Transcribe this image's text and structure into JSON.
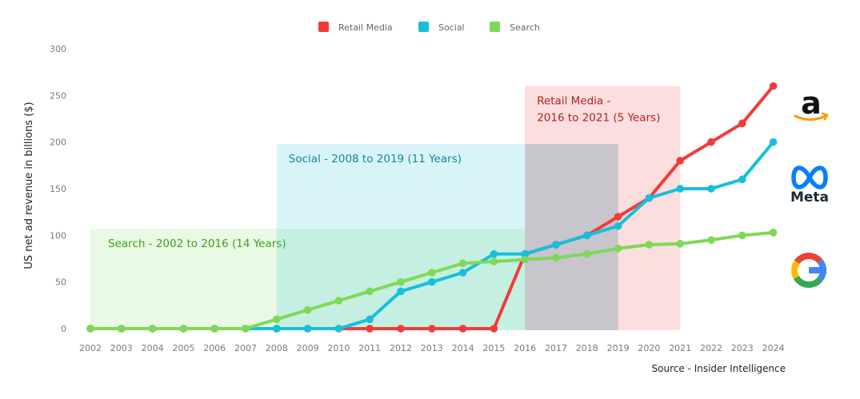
{
  "chart_data": {
    "type": "line",
    "title": "",
    "xlabel": "",
    "ylabel": "US net ad revenue in billions ($)",
    "ylim": [
      0,
      300
    ],
    "yticks": [
      0,
      50,
      100,
      150,
      200,
      250,
      300
    ],
    "grid": false,
    "legend_position": "top-center",
    "x": [
      "2002",
      "2003",
      "2004",
      "2005",
      "2006",
      "2007",
      "2008",
      "2009",
      "2010",
      "2011",
      "2012",
      "2013",
      "2014",
      "2015",
      "2016",
      "2017",
      "2018",
      "2019",
      "2020",
      "2021",
      "2022",
      "2023",
      "2024"
    ],
    "series": [
      {
        "name": "Retail Media",
        "color": "#f23a3a",
        "values": [
          0,
          0,
          0,
          0,
          0,
          0,
          0,
          0,
          0,
          0,
          0,
          0,
          0,
          0,
          80,
          90,
          100,
          120,
          140,
          180,
          200,
          220,
          260
        ]
      },
      {
        "name": "Social",
        "color": "#17bfdb",
        "values": [
          0,
          0,
          0,
          0,
          0,
          0,
          0,
          0,
          0,
          10,
          40,
          50,
          60,
          80,
          80,
          90,
          100,
          110,
          140,
          150,
          150,
          160,
          200
        ]
      },
      {
        "name": "Search",
        "color": "#7ed957",
        "values": [
          0,
          0,
          0,
          0,
          0,
          0,
          10,
          20,
          30,
          40,
          50,
          60,
          70,
          72,
          74,
          76,
          80,
          86,
          90,
          91,
          95,
          100,
          103
        ]
      }
    ],
    "bands": [
      {
        "label": "Search - 2002 to 2016 (14 Years)",
        "from": "2002",
        "to": "2016",
        "top": 107,
        "fill": "#7ed957",
        "text_color": "#3fa01f"
      },
      {
        "label": "Social - 2008 to 2019 (11 Years)",
        "from": "2008",
        "to": "2019",
        "top": 198,
        "fill": "#17bfdb",
        "text_color": "#1a8499"
      },
      {
        "label": "Retail Media -|2016 to 2021 (5 Years)",
        "from": "2016",
        "to": "2021",
        "top": 260,
        "fill": "#f23a3a",
        "text_color": "#b51f1f"
      }
    ],
    "annotations": [
      {
        "text": "Source - Insider Intelligence",
        "position": "bottom-right"
      }
    ],
    "logos": [
      {
        "name": "amazon-logo",
        "text": "a"
      },
      {
        "name": "meta-logo",
        "text": "Meta"
      },
      {
        "name": "google-logo",
        "text": "G"
      }
    ]
  }
}
